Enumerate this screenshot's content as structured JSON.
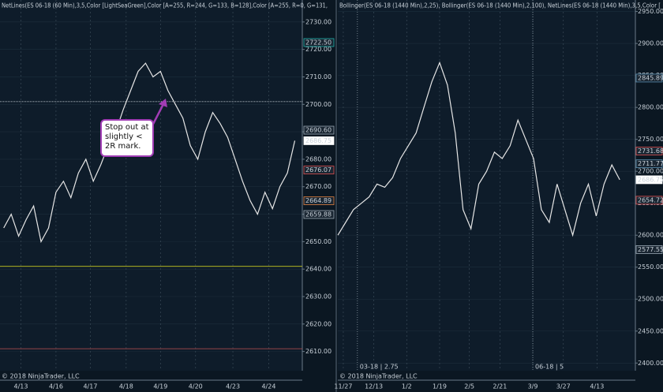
{
  "charts": [
    {
      "type": "line",
      "header": "NetLines(ES 06-18 (60 Min),3,5,Color [LightSeaGreen],Color [A=255, R=244, G=133, B=128],Color [A=255, R=0, G=131,",
      "annotation": "Stop out at slightly < 2R mark.",
      "footer": "© 2018 NinjaTrader, LLC",
      "color": "#e6e6e6",
      "x": [
        0,
        1,
        2,
        3,
        4,
        5,
        6,
        7,
        8,
        9,
        10,
        11,
        12,
        13,
        14,
        15,
        16,
        17,
        18,
        19,
        20,
        21,
        22,
        23,
        24,
        25,
        26,
        27,
        28,
        29,
        30,
        31,
        32,
        33,
        34,
        35,
        36,
        37,
        38,
        39
      ],
      "values": [
        2655,
        2660,
        2652,
        2658,
        2663,
        2650,
        2655,
        2668,
        2672,
        2666,
        2675,
        2680,
        2672,
        2678,
        2685,
        2690,
        2698,
        2705,
        2712,
        2715,
        2710,
        2712,
        2705,
        2700,
        2695,
        2685,
        2680,
        2690,
        2697,
        2693,
        2688,
        2680,
        2672,
        2665,
        2660,
        2668,
        2662,
        2670,
        2675,
        2686.75
      ],
      "xlim": [
        -0.5,
        40
      ],
      "xticks": [
        {
          "value": 2.3,
          "label": "4/13"
        },
        {
          "value": 7,
          "label": "4/16"
        },
        {
          "value": 11.6,
          "label": "4/17"
        },
        {
          "value": 16.4,
          "label": "4/18"
        },
        {
          "value": 21,
          "label": "4/19"
        },
        {
          "value": 25.7,
          "label": "4/20"
        },
        {
          "value": 30.7,
          "label": "4/23"
        },
        {
          "value": 35.5,
          "label": "4/24"
        }
      ],
      "ylim": [
        2603,
        2738
      ],
      "yticks": [
        {
          "value": 2610,
          "label": "2610.00"
        },
        {
          "value": 2620,
          "label": "2620.00"
        },
        {
          "value": 2630,
          "label": "2630.00"
        },
        {
          "value": 2640,
          "label": "2640.00"
        },
        {
          "value": 2650,
          "label": "2650.00"
        },
        {
          "value": 2660,
          "label": "2660.00"
        },
        {
          "value": 2670,
          "label": "2670.00"
        },
        {
          "value": 2680,
          "label": "2680.00"
        },
        {
          "value": 2690,
          "label": "2690.00"
        },
        {
          "value": 2700,
          "label": "2700.00"
        },
        {
          "value": 2710,
          "label": "2710.00"
        },
        {
          "value": 2720,
          "label": "2720.00"
        },
        {
          "value": 2730,
          "label": "2730.00"
        }
      ],
      "levels": [
        {
          "value": 2701,
          "color": "#c8d0d8"
        },
        {
          "value": 2641,
          "color": "#c8c820"
        },
        {
          "value": 2611,
          "color": "#c05050"
        }
      ],
      "markers": [
        {
          "value": 2722.5,
          "label": "2722.50",
          "color": "#20b2aa"
        },
        {
          "value": 2690.6,
          "label": "2690.60",
          "color": "#9aa8b4"
        },
        {
          "value": 2686.75,
          "label": "2686.75",
          "color": "#ffffff"
        },
        {
          "value": 2676.07,
          "label": "2676.07",
          "color": "#e05050"
        },
        {
          "value": 2664.89,
          "label": "2664.89",
          "color": "#e08040"
        },
        {
          "value": 2659.88,
          "label": "2659.88",
          "color": "#9aa8b4"
        }
      ]
    },
    {
      "type": "line",
      "header": "Bollinger(ES 06-18 (1440 Min),2,25), Bollinger(ES 06-18 (1440 Min),2,100), NetLines(ES 06-18 (1440 Min),3,5,Color [",
      "footer": "© 2018 NinjaTrader, LLC",
      "rollovers": [
        {
          "value": 2.5,
          "label": "03-18 | 2.75"
        },
        {
          "value": 24.9,
          "label": "06-18 | 5"
        }
      ],
      "color": "#e6e6e6",
      "x": [
        0,
        1,
        2,
        3,
        4,
        5,
        6,
        7,
        8,
        9,
        10,
        11,
        12,
        13,
        14,
        15,
        16,
        17,
        18,
        19,
        20,
        21,
        22,
        23,
        24,
        25,
        26,
        27,
        28,
        29,
        30,
        31,
        32,
        33,
        34,
        35,
        36
      ],
      "values": [
        2600,
        2620,
        2640,
        2650,
        2660,
        2680,
        2675,
        2690,
        2720,
        2740,
        2760,
        2800,
        2840,
        2870,
        2835,
        2760,
        2640,
        2610,
        2680,
        2700,
        2730,
        2720,
        2740,
        2780,
        2750,
        2720,
        2640,
        2620,
        2680,
        2640,
        2600,
        2650,
        2680,
        2630,
        2680,
        2710,
        2686.75
      ],
      "xlim": [
        0,
        38
      ],
      "xticks": [
        {
          "value": 0.7,
          "label": "11/27"
        },
        {
          "value": 4.6,
          "label": "12/13"
        },
        {
          "value": 8.8,
          "label": "1/2"
        },
        {
          "value": 13,
          "label": "1/19"
        },
        {
          "value": 16.8,
          "label": "2/5"
        },
        {
          "value": 20.7,
          "label": "2/21"
        },
        {
          "value": 24.9,
          "label": "3/9"
        },
        {
          "value": 28.8,
          "label": "3/27"
        },
        {
          "value": 33.1,
          "label": "4/13"
        }
      ],
      "ylim": [
        2388,
        2968
      ],
      "yticks": [
        {
          "value": 2400,
          "label": "2400.00"
        },
        {
          "value": 2450,
          "label": "2450.00"
        },
        {
          "value": 2500,
          "label": "2500.00"
        },
        {
          "value": 2550,
          "label": "2550.00"
        },
        {
          "value": 2600,
          "label": "2600.00"
        },
        {
          "value": 2650,
          "label": "2650.00"
        },
        {
          "value": 2700,
          "label": "2700.00"
        },
        {
          "value": 2750,
          "label": "2750.00"
        },
        {
          "value": 2800,
          "label": "2800.00"
        },
        {
          "value": 2850,
          "label": "2850.00"
        },
        {
          "value": 2900,
          "label": "2900.00"
        },
        {
          "value": 2950,
          "label": "2950.00"
        }
      ],
      "markers": [
        {
          "value": 2845.89,
          "label": "2845.89",
          "color": "#5a8fb0"
        },
        {
          "value": 2731.68,
          "label": "2731.68",
          "color": "#e05050"
        },
        {
          "value": 2711.77,
          "label": "2711.77",
          "color": "#5a8fb0"
        },
        {
          "value": 2686.75,
          "label": "2686.75",
          "color": "#ffffff"
        },
        {
          "value": 2654.72,
          "label": "2654.72",
          "color": "#e05050"
        },
        {
          "value": 2577.55,
          "label": "2577.55",
          "color": "#9aa8b4"
        }
      ]
    }
  ]
}
